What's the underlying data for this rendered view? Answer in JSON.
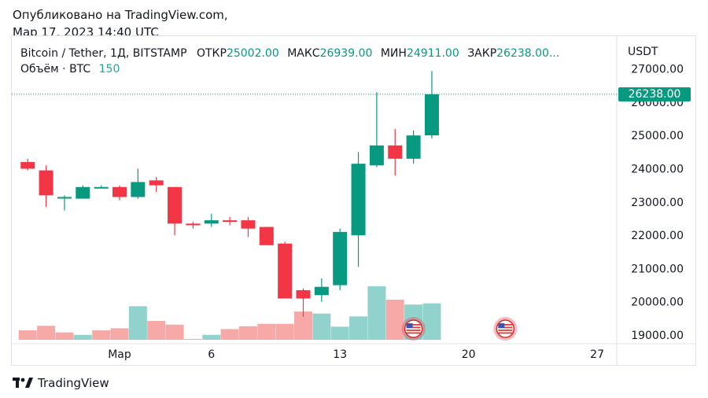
{
  "published": {
    "line1": "Опубликовано на TradingView.com,",
    "line2": "Мар 17, 2023 14:40 UTC"
  },
  "legend": {
    "symbol": "Bitcoin / Tether, 1Д, BITSTAMP",
    "open_label": "ОТКР",
    "open_value": "25002.00",
    "high_label": "МАКС",
    "high_value": "26939.00",
    "low_label": "МИН",
    "low_value": "24911.00",
    "close_label": "ЗАКР",
    "close_value": "26238.00...",
    "volume_label": "Объём · BTC",
    "volume_value": "150"
  },
  "axis": {
    "currency": "USDT",
    "last_price": "26238.00"
  },
  "footer": {
    "brand": "TradingView"
  },
  "colors": {
    "up": "#089981",
    "down": "#f23645",
    "vol_up": "#26a69a",
    "vol_down": "#ef5350"
  },
  "chart_data": {
    "type": "candlestick",
    "y_ticks": [
      "27000.00",
      "26000.00",
      "25000.00",
      "24000.00",
      "23000.00",
      "22000.00",
      "21000.00",
      "20000.00",
      "19000.00"
    ],
    "ylim": [
      18850,
      27350
    ],
    "x_ticks": [
      {
        "label": "Мар",
        "day": 1
      },
      {
        "label": "6",
        "day": 6
      },
      {
        "label": "13",
        "day": 13
      },
      {
        "label": "20",
        "day": 20
      },
      {
        "label": "27",
        "day": 27
      }
    ],
    "events": [
      {
        "icon": "us-flag",
        "day": 17
      },
      {
        "icon": "us-flag",
        "day": 22
      }
    ],
    "candles": [
      {
        "day": -4,
        "o": 24200,
        "h": 24300,
        "l": 23950,
        "c": 24000
      },
      {
        "day": -3,
        "o": 23950,
        "h": 24100,
        "l": 22850,
        "c": 23200
      },
      {
        "day": -2,
        "o": 23150,
        "h": 23200,
        "l": 22750,
        "c": 23150
      },
      {
        "day": -1,
        "o": 23100,
        "h": 23500,
        "l": 23100,
        "c": 23450
      },
      {
        "day": 0,
        "o": 23450,
        "h": 23500,
        "l": 23450,
        "c": 23450
      },
      {
        "day": 1,
        "o": 23450,
        "h": 23500,
        "l": 23050,
        "c": 23150
      },
      {
        "day": 2,
        "o": 23150,
        "h": 24000,
        "l": 23100,
        "c": 23600
      },
      {
        "day": 3,
        "o": 23650,
        "h": 23750,
        "l": 23300,
        "c": 23500
      },
      {
        "day": 4,
        "o": 23450,
        "h": 23450,
        "l": 22000,
        "c": 22350
      },
      {
        "day": 5,
        "o": 22350,
        "h": 22400,
        "l": 22200,
        "c": 22300
      },
      {
        "day": 6,
        "o": 22350,
        "h": 22650,
        "l": 22250,
        "c": 22450
      },
      {
        "day": 7,
        "o": 22450,
        "h": 22550,
        "l": 22300,
        "c": 22400
      },
      {
        "day": 8,
        "o": 22450,
        "h": 22550,
        "l": 21950,
        "c": 22200
      },
      {
        "day": 9,
        "o": 22250,
        "h": 22250,
        "l": 21750,
        "c": 21700
      },
      {
        "day": 10,
        "o": 21750,
        "h": 21800,
        "l": 20150,
        "c": 20100
      },
      {
        "day": 11,
        "o": 20350,
        "h": 20400,
        "l": 19550,
        "c": 20100
      },
      {
        "day": 12,
        "o": 20200,
        "h": 20700,
        "l": 20000,
        "c": 20450
      },
      {
        "day": 13,
        "o": 20500,
        "h": 22200,
        "l": 20350,
        "c": 22100
      },
      {
        "day": 14,
        "o": 22000,
        "h": 24500,
        "l": 21050,
        "c": 24150
      },
      {
        "day": 15,
        "o": 24100,
        "h": 26300,
        "l": 24050,
        "c": 24700
      },
      {
        "day": 16,
        "o": 24700,
        "h": 25200,
        "l": 23800,
        "c": 24300
      },
      {
        "day": 17,
        "o": 24300,
        "h": 25150,
        "l": 24150,
        "c": 25000
      },
      {
        "day": 18,
        "o": 25002,
        "h": 26939,
        "l": 24911,
        "c": 26238
      }
    ],
    "volume": [
      {
        "day": -4,
        "v": 0.25,
        "up": false
      },
      {
        "day": -3,
        "v": 0.36,
        "up": false
      },
      {
        "day": -2,
        "v": 0.2,
        "up": false
      },
      {
        "day": -1,
        "v": 0.14,
        "up": true
      },
      {
        "day": 0,
        "v": 0.25,
        "up": false
      },
      {
        "day": 1,
        "v": 0.3,
        "up": false
      },
      {
        "day": 2,
        "v": 0.84,
        "up": true
      },
      {
        "day": 3,
        "v": 0.48,
        "up": false
      },
      {
        "day": 4,
        "v": 0.39,
        "up": false
      },
      {
        "day": 5,
        "v": 0.04,
        "up": false
      },
      {
        "day": 6,
        "v": 0.14,
        "up": true
      },
      {
        "day": 7,
        "v": 0.28,
        "up": false
      },
      {
        "day": 8,
        "v": 0.35,
        "up": false
      },
      {
        "day": 9,
        "v": 0.41,
        "up": false
      },
      {
        "day": 10,
        "v": 0.41,
        "up": false
      },
      {
        "day": 11,
        "v": 0.71,
        "up": false
      },
      {
        "day": 12,
        "v": 0.66,
        "up": true
      },
      {
        "day": 13,
        "v": 0.34,
        "up": true
      },
      {
        "day": 14,
        "v": 0.59,
        "up": true
      },
      {
        "day": 15,
        "v": 1.33,
        "up": true
      },
      {
        "day": 16,
        "v": 1.0,
        "up": false
      },
      {
        "day": 17,
        "v": 0.88,
        "up": true
      },
      {
        "day": 18,
        "v": 0.91,
        "up": true
      }
    ]
  }
}
